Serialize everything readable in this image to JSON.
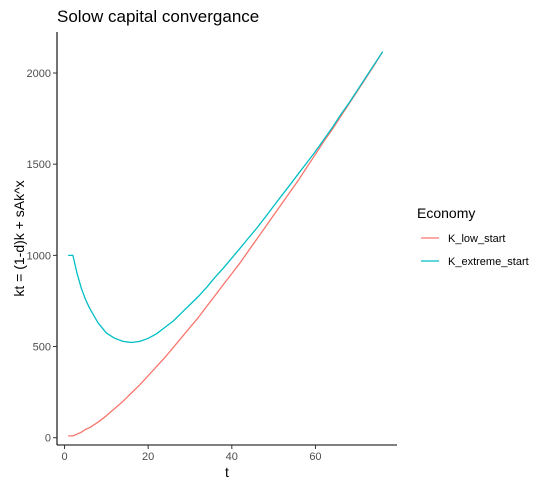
{
  "chart_data": {
    "type": "line",
    "title": "Solow capital convergance",
    "xlabel": "t",
    "ylabel": "kt = (1-d)k + sAk^x",
    "xlim": [
      -1.8,
      79.5
    ],
    "ylim": [
      -40,
      2225
    ],
    "x_ticks": [
      0,
      20,
      40,
      60
    ],
    "y_ticks": [
      0,
      500,
      1000,
      1500,
      2000
    ],
    "grid": false,
    "legend": {
      "title": "Economy",
      "position": "right"
    },
    "colors": {
      "K_low_start": "#F8766D",
      "K_extreme_start": "#00BFC4"
    },
    "series": [
      {
        "name": "K_low_start",
        "color": "#F8766D",
        "x": [
          1,
          2,
          3,
          4,
          5,
          6,
          8,
          10,
          12,
          14,
          16,
          18,
          20,
          22,
          24,
          26,
          28,
          30,
          32,
          34,
          36,
          38,
          40,
          42,
          44,
          46,
          48,
          50,
          52,
          54,
          56,
          58,
          60,
          62,
          64,
          66,
          68,
          70,
          72,
          74,
          76
        ],
        "values": [
          10,
          10,
          20,
          30,
          45,
          55,
          85,
          120,
          160,
          200,
          245,
          290,
          340,
          390,
          440,
          495,
          550,
          605,
          660,
          720,
          780,
          840,
          900,
          960,
          1025,
          1090,
          1155,
          1220,
          1285,
          1350,
          1415,
          1485,
          1555,
          1625,
          1690,
          1760,
          1830,
          1900,
          1970,
          2040,
          2115
        ]
      },
      {
        "name": "K_extreme_start",
        "color": "#00BFC4",
        "x": [
          1,
          2,
          3,
          4,
          5,
          6,
          8,
          10,
          12,
          14,
          16,
          18,
          20,
          22,
          24,
          26,
          28,
          30,
          32,
          34,
          36,
          38,
          40,
          42,
          44,
          46,
          48,
          50,
          52,
          54,
          56,
          58,
          60,
          62,
          64,
          66,
          68,
          70,
          72,
          74,
          76
        ],
        "values": [
          1000,
          1000,
          900,
          820,
          760,
          710,
          630,
          575,
          545,
          528,
          522,
          528,
          545,
          570,
          605,
          640,
          685,
          730,
          775,
          825,
          880,
          930,
          985,
          1040,
          1095,
          1150,
          1210,
          1270,
          1330,
          1390,
          1450,
          1510,
          1570,
          1635,
          1700,
          1770,
          1835,
          1905,
          1975,
          2045,
          2115
        ]
      }
    ]
  }
}
